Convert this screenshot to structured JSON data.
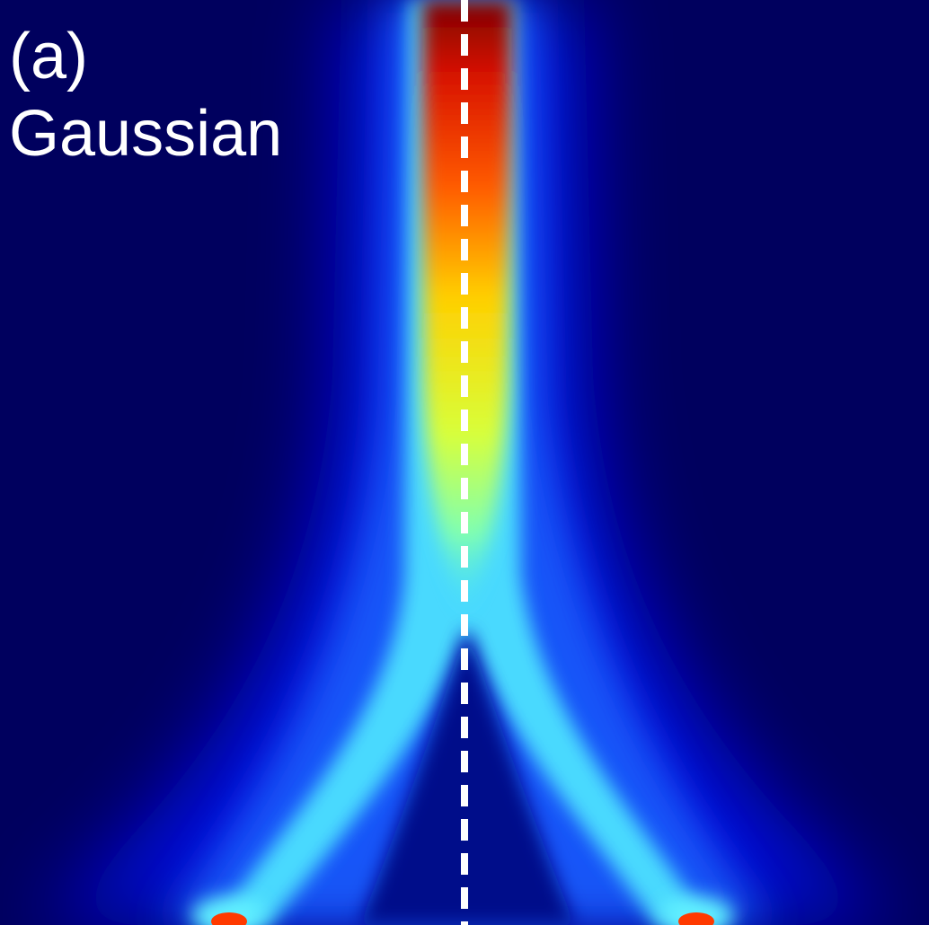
{
  "panel": {
    "label": "(a)",
    "profile": "Gaussian"
  },
  "colormap": {
    "name": "jet",
    "background": "#00005e",
    "guide_line_color": "#ffffff"
  }
}
